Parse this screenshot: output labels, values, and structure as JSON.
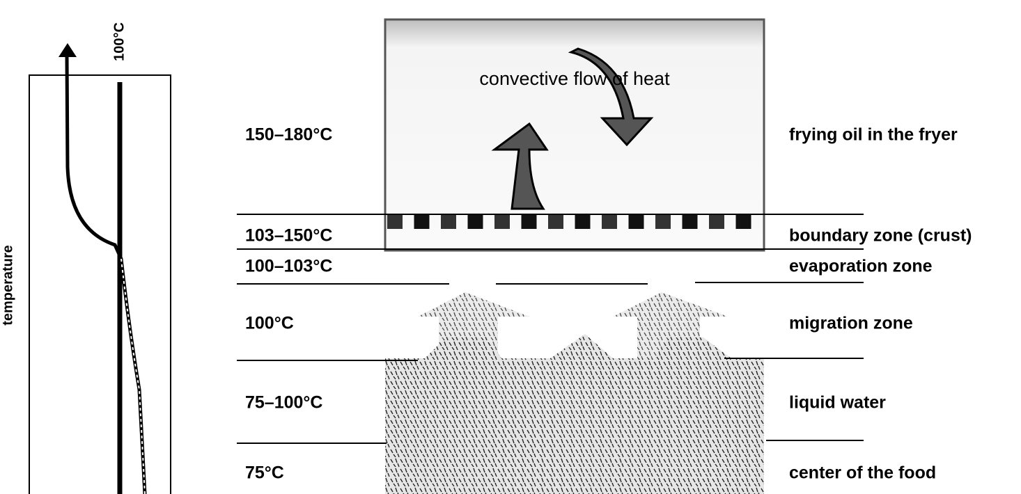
{
  "axis_label": "temperature",
  "reference_label": "100°C",
  "flow_label": "convective flow of heat",
  "zones": [
    {
      "temperature": "150–180°C",
      "name": "frying oil in the fryer"
    },
    {
      "temperature": "103–150°C",
      "name": "boundary zone (crust)"
    },
    {
      "temperature": "100–103°C",
      "name": "evaporation zone"
    },
    {
      "temperature": "100°C",
      "name": "migration zone"
    },
    {
      "temperature": "75–100°C",
      "name": "liquid water"
    },
    {
      "temperature": "75°C",
      "name": "center of the food"
    }
  ]
}
